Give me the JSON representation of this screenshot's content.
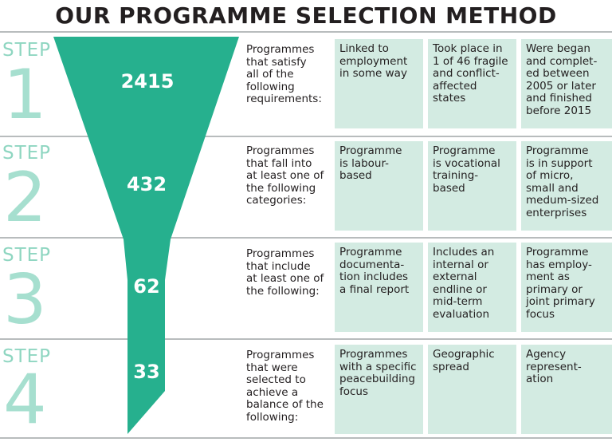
{
  "title": "OUR PROGRAMME SELECTION METHOD",
  "colors": {
    "funnel": "#26b08e",
    "step_text": "#8fd6c1",
    "box": "#d3ebe2",
    "rule": "#b8bcbd"
  },
  "steps": [
    {
      "step_label": "STEP",
      "number": "1",
      "count": "2415",
      "description": "Programmes\nthat satisfy\nall of the\nfollowing\nrequirements:",
      "criteria": [
        "Linked to\nemployment\nin some way",
        "Took place in\n1 of 46 fragile\nand conflict-\naffected\nstates",
        "Were began\nand complet-\ned between\n2005 or later\nand finished\nbefore 2015"
      ]
    },
    {
      "step_label": "STEP",
      "number": "2",
      "count": "432",
      "description": "Programmes\nthat fall into\nat least one of\nthe following\ncategories:",
      "criteria": [
        "Programme\nis labour-\nbased",
        "Programme\nis vocational\ntraining-\nbased",
        "Programme\nis in support\nof micro,\nsmall and\nmedum-sized\nenterprises"
      ]
    },
    {
      "step_label": "STEP",
      "number": "3",
      "count": "62",
      "description": "Programmes\nthat include\nat least one of\nthe following:",
      "criteria": [
        "Programme\ndocumenta-\ntion includes\na final report",
        "Includes an\ninternal or\nexternal\nendline or\nmid-term\nevaluation",
        "Programme\nhas employ-\nment as\nprimary or\njoint primary\nfocus"
      ]
    },
    {
      "step_label": "STEP",
      "number": "4",
      "count": "33",
      "description": "Programmes\nthat were\nselected to\nachieve a\nbalance of the\nfollowing:",
      "criteria": [
        "Programmes\nwith a specific\npeacebuilding\nfocus",
        "Geographic\nspread",
        "Agency\nrepresent-\nation"
      ]
    }
  ]
}
